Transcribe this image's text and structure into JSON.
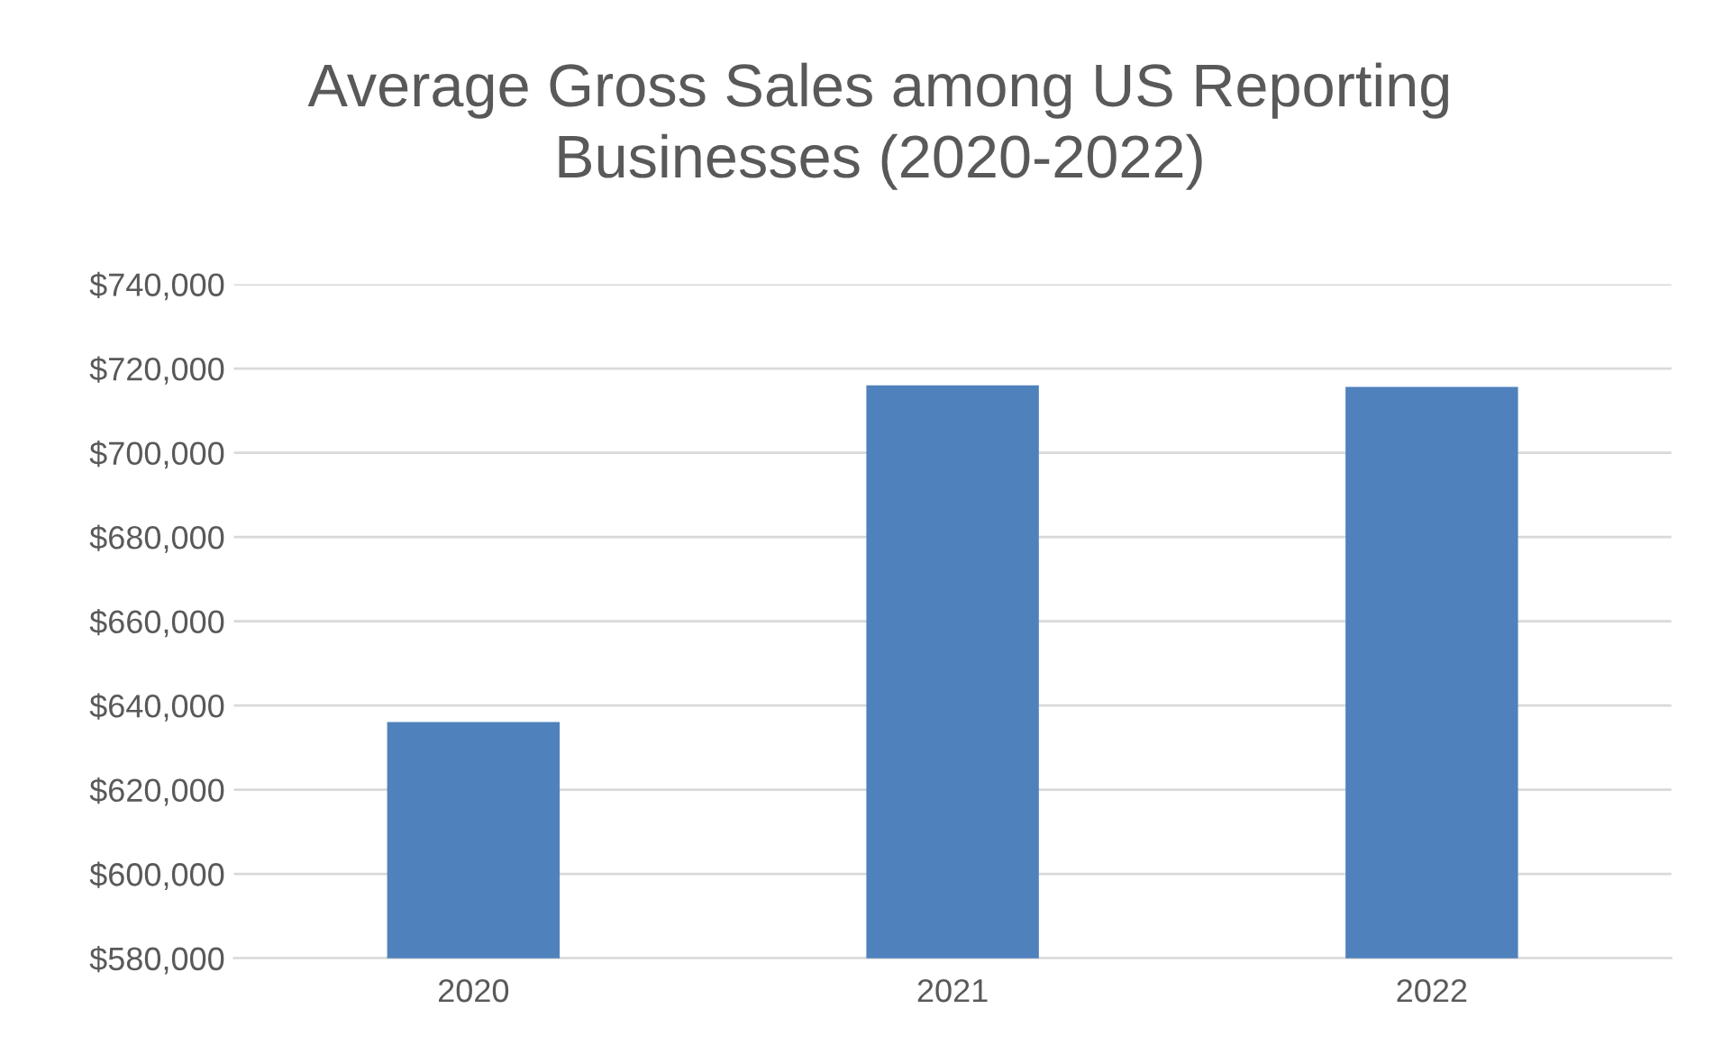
{
  "chart_data": {
    "type": "bar",
    "title": "Average Gross Sales among US Reporting\nBusinesses (2020-2022)",
    "categories": [
      "2020",
      "2021",
      "2022"
    ],
    "values": [
      636100,
      716000,
      715600
    ],
    "color": "#4f81bd",
    "ylim": [
      580000,
      740000
    ],
    "yticks": [
      {
        "value": 580000,
        "label": "$580,000"
      },
      {
        "value": 600000,
        "label": "$600,000"
      },
      {
        "value": 620000,
        "label": "$620,000"
      },
      {
        "value": 640000,
        "label": "$640,000"
      },
      {
        "value": 660000,
        "label": "$660,000"
      },
      {
        "value": 680000,
        "label": "$680,000"
      },
      {
        "value": 700000,
        "label": "$700,000"
      },
      {
        "value": 720000,
        "label": "$720,000"
      },
      {
        "value": 740000,
        "label": "$740,000"
      }
    ],
    "grid": "y"
  }
}
